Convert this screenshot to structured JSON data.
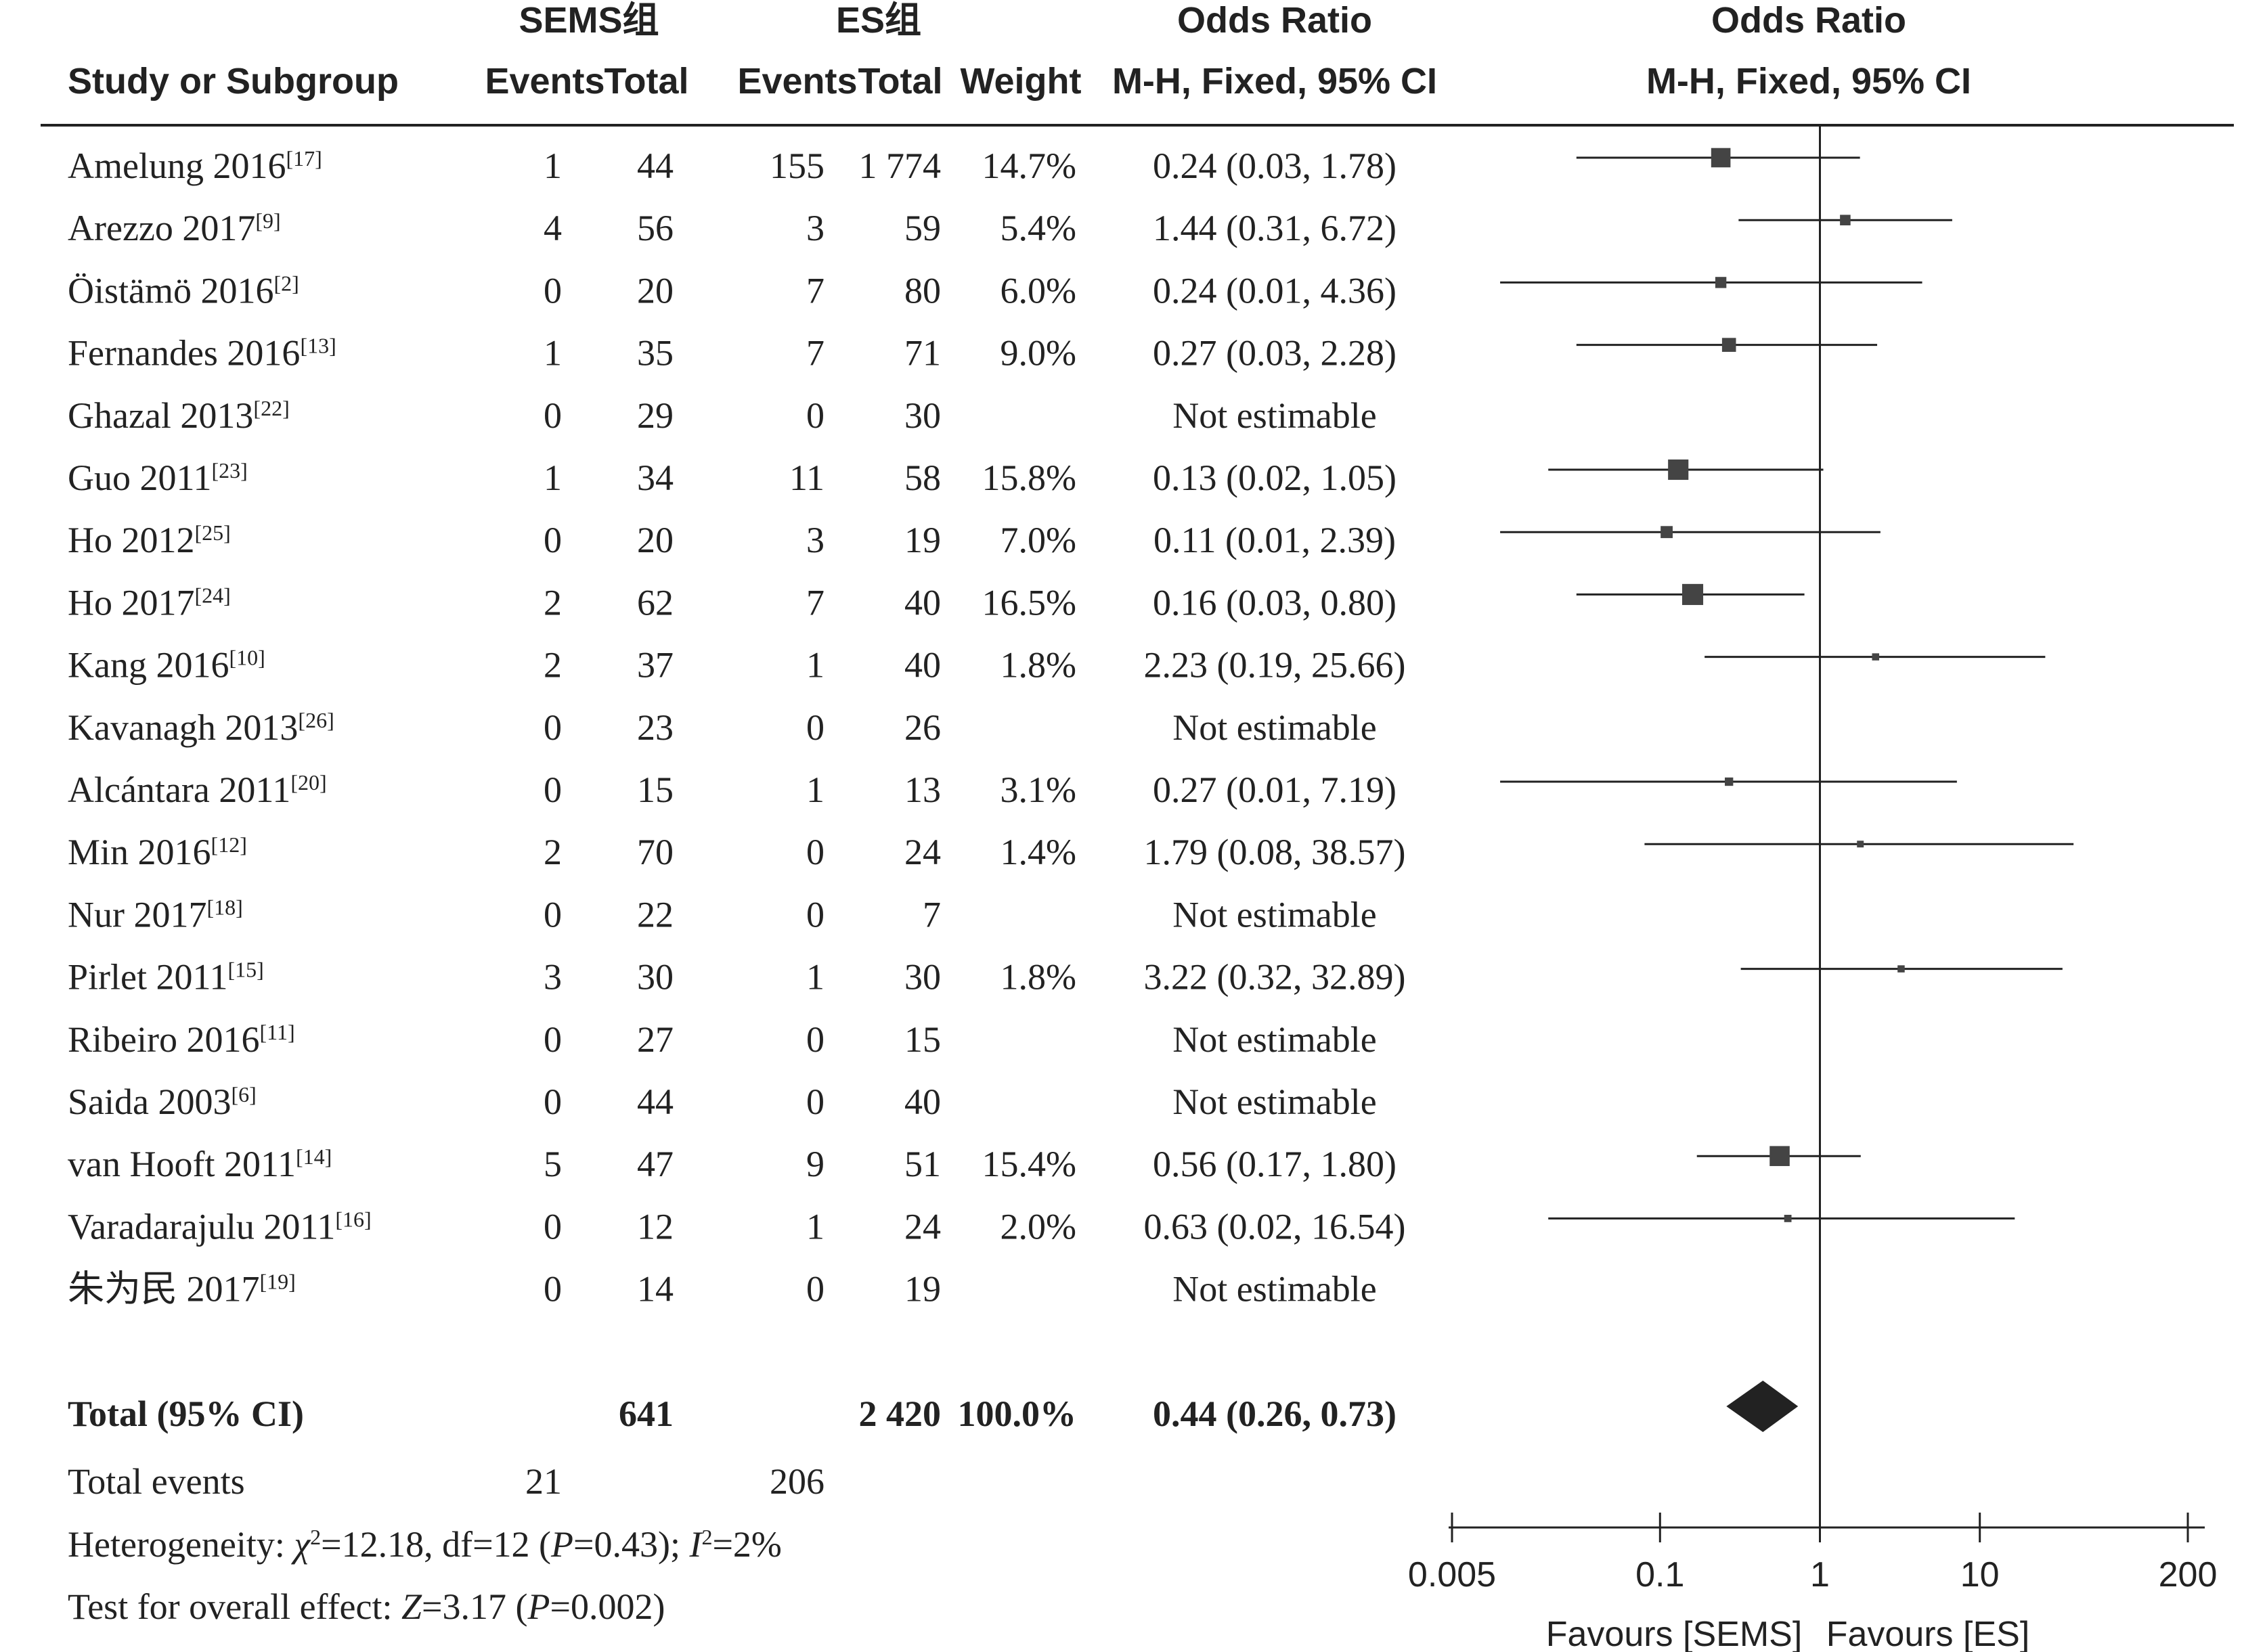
{
  "header": {
    "group1_label": "SEMS组",
    "group2_label": "ES组",
    "or_label_table": "Odds Ratio",
    "or_label_plot": "Odds Ratio",
    "study_col": "Study or Subgroup",
    "events1": "Events",
    "total1": "Total",
    "events2": "Events",
    "total2": "Total",
    "weight": "Weight",
    "method_table": "M-H, Fixed, 95% CI",
    "method_plot": "M-H, Fixed, 95% CI"
  },
  "studies": [
    {
      "name": "Amelung 2016",
      "ref": "[17]",
      "e1": "1",
      "t1": "44",
      "e2": "155",
      "t2": "1 774",
      "weight": "14.7%",
      "ci_text": "0.24 (0.03, 1.78)"
    },
    {
      "name": "Arezzo 2017",
      "ref": "[9]",
      "e1": "4",
      "t1": "56",
      "e2": "3",
      "t2": "59",
      "weight": "5.4%",
      "ci_text": "1.44 (0.31, 6.72)"
    },
    {
      "name": "Öistämö 2016",
      "ref": "[2]",
      "e1": "0",
      "t1": "20",
      "e2": "7",
      "t2": "80",
      "weight": "6.0%",
      "ci_text": "0.24 (0.01, 4.36)"
    },
    {
      "name": "Fernandes 2016",
      "ref": "[13]",
      "e1": "1",
      "t1": "35",
      "e2": "7",
      "t2": "71",
      "weight": "9.0%",
      "ci_text": "0.27 (0.03, 2.28)"
    },
    {
      "name": "Ghazal 2013",
      "ref": "[22]",
      "e1": "0",
      "t1": "29",
      "e2": "0",
      "t2": "30",
      "weight": "",
      "ci_text": "Not estimable"
    },
    {
      "name": "Guo 2011",
      "ref": "[23]",
      "e1": "1",
      "t1": "34",
      "e2": "11",
      "t2": "58",
      "weight": "15.8%",
      "ci_text": "0.13 (0.02, 1.05)"
    },
    {
      "name": "Ho 2012",
      "ref": "[25]",
      "e1": "0",
      "t1": "20",
      "e2": "3",
      "t2": "19",
      "weight": "7.0%",
      "ci_text": "0.11 (0.01, 2.39)"
    },
    {
      "name": "Ho 2017",
      "ref": "[24]",
      "e1": "2",
      "t1": "62",
      "e2": "7",
      "t2": "40",
      "weight": "16.5%",
      "ci_text": "0.16 (0.03, 0.80)"
    },
    {
      "name": "Kang 2016",
      "ref": "[10]",
      "e1": "2",
      "t1": "37",
      "e2": "1",
      "t2": "40",
      "weight": "1.8%",
      "ci_text": "2.23 (0.19, 25.66)"
    },
    {
      "name": "Kavanagh 2013",
      "ref": "[26]",
      "e1": "0",
      "t1": "23",
      "e2": "0",
      "t2": "26",
      "weight": "",
      "ci_text": "Not estimable"
    },
    {
      "name": "Alcántara 2011",
      "ref": "[20]",
      "e1": "0",
      "t1": "15",
      "e2": "1",
      "t2": "13",
      "weight": "3.1%",
      "ci_text": "0.27 (0.01, 7.19)"
    },
    {
      "name": "Min 2016",
      "ref": "[12]",
      "e1": "2",
      "t1": "70",
      "e2": "0",
      "t2": "24",
      "weight": "1.4%",
      "ci_text": "1.79 (0.08, 38.57)"
    },
    {
      "name": "Nur 2017",
      "ref": "[18]",
      "e1": "0",
      "t1": "22",
      "e2": "0",
      "t2": "7",
      "weight": "",
      "ci_text": "Not estimable"
    },
    {
      "name": "Pirlet 2011",
      "ref": "[15]",
      "e1": "3",
      "t1": "30",
      "e2": "1",
      "t2": "30",
      "weight": "1.8%",
      "ci_text": "3.22 (0.32, 32.89)"
    },
    {
      "name": "Ribeiro 2016",
      "ref": "[11]",
      "e1": "0",
      "t1": "27",
      "e2": "0",
      "t2": "15",
      "weight": "",
      "ci_text": "Not estimable"
    },
    {
      "name": "Saida 2003",
      "ref": "[6]",
      "e1": "0",
      "t1": "44",
      "e2": "0",
      "t2": "40",
      "weight": "",
      "ci_text": "Not estimable"
    },
    {
      "name": "van Hooft 2011",
      "ref": "[14]",
      "e1": "5",
      "t1": "47",
      "e2": "9",
      "t2": "51",
      "weight": "15.4%",
      "ci_text": "0.56 (0.17, 1.80)"
    },
    {
      "name": "Varadarajulu 2011",
      "ref": "[16]",
      "e1": "0",
      "t1": "12",
      "e2": "1",
      "t2": "24",
      "weight": "2.0%",
      "ci_text": "0.63 (0.02, 16.54)"
    },
    {
      "name": "朱为民 2017",
      "ref": "[19]",
      "e1": "0",
      "t1": "14",
      "e2": "0",
      "t2": "19",
      "weight": "",
      "ci_text": "Not estimable"
    }
  ],
  "total": {
    "label": "Total (95% CI)",
    "t1": "641",
    "t2": "2 420",
    "weight": "100.0%",
    "ci_text": "0.44 (0.26, 0.73)"
  },
  "total_events": {
    "label": "Total events",
    "e1": "21",
    "e2": "206"
  },
  "heterogeneity": {
    "prefix": "Heterogeneity: ",
    "chi_symbol": "χ",
    "chi_value": "=12.18, df=12 (",
    "p_symbol": "P",
    "p_value": "=0.43); ",
    "i_symbol": "I",
    "i_value": "=2%"
  },
  "overall_effect": {
    "prefix": "Test for overall effect: ",
    "z_symbol": "Z",
    "z_value": "=3.17 (",
    "p_symbol": "P",
    "p_value": "=0.002)"
  },
  "axis": {
    "ticks": [
      "0.005",
      "0.1",
      "1",
      "10",
      "200"
    ],
    "favours_left": "Favours [SEMS]",
    "favours_right": "Favours [ES]"
  },
  "chart_data": {
    "type": "forest",
    "scale": "log",
    "xlim": [
      0.005,
      200
    ],
    "reference_line": 1,
    "studies": [
      {
        "study": "Amelung 2016",
        "or": 0.24,
        "lo": 0.03,
        "hi": 1.78,
        "weight": 14.7
      },
      {
        "study": "Arezzo 2017",
        "or": 1.44,
        "lo": 0.31,
        "hi": 6.72,
        "weight": 5.4
      },
      {
        "study": "Öistämö 2016",
        "or": 0.24,
        "lo": 0.01,
        "hi": 4.36,
        "weight": 6.0
      },
      {
        "study": "Fernandes 2016",
        "or": 0.27,
        "lo": 0.03,
        "hi": 2.28,
        "weight": 9.0
      },
      {
        "study": "Ghazal 2013",
        "or": null,
        "lo": null,
        "hi": null,
        "weight": null
      },
      {
        "study": "Guo 2011",
        "or": 0.13,
        "lo": 0.02,
        "hi": 1.05,
        "weight": 15.8
      },
      {
        "study": "Ho 2012",
        "or": 0.11,
        "lo": 0.01,
        "hi": 2.39,
        "weight": 7.0
      },
      {
        "study": "Ho 2017",
        "or": 0.16,
        "lo": 0.03,
        "hi": 0.8,
        "weight": 16.5
      },
      {
        "study": "Kang 2016",
        "or": 2.23,
        "lo": 0.19,
        "hi": 25.66,
        "weight": 1.8
      },
      {
        "study": "Kavanagh 2013",
        "or": null,
        "lo": null,
        "hi": null,
        "weight": null
      },
      {
        "study": "Alcántara 2011",
        "or": 0.27,
        "lo": 0.01,
        "hi": 7.19,
        "weight": 3.1
      },
      {
        "study": "Min 2016",
        "or": 1.79,
        "lo": 0.08,
        "hi": 38.57,
        "weight": 1.4
      },
      {
        "study": "Nur 2017",
        "or": null,
        "lo": null,
        "hi": null,
        "weight": null
      },
      {
        "study": "Pirlet 2011",
        "or": 3.22,
        "lo": 0.32,
        "hi": 32.89,
        "weight": 1.8
      },
      {
        "study": "Ribeiro 2016",
        "or": null,
        "lo": null,
        "hi": null,
        "weight": null
      },
      {
        "study": "Saida 2003",
        "or": null,
        "lo": null,
        "hi": null,
        "weight": null
      },
      {
        "study": "van Hooft 2011",
        "or": 0.56,
        "lo": 0.17,
        "hi": 1.8,
        "weight": 15.4
      },
      {
        "study": "Varadarajulu 2011",
        "or": 0.63,
        "lo": 0.02,
        "hi": 16.54,
        "weight": 2.0
      },
      {
        "study": "朱为民 2017",
        "or": null,
        "lo": null,
        "hi": null,
        "weight": null
      }
    ],
    "pooled": {
      "or": 0.44,
      "lo": 0.26,
      "hi": 0.73
    },
    "tick_values": [
      0.005,
      0.1,
      1,
      10,
      200
    ],
    "colors": {
      "marker": "#444444",
      "line": "#222222",
      "diamond": "#222222"
    }
  }
}
